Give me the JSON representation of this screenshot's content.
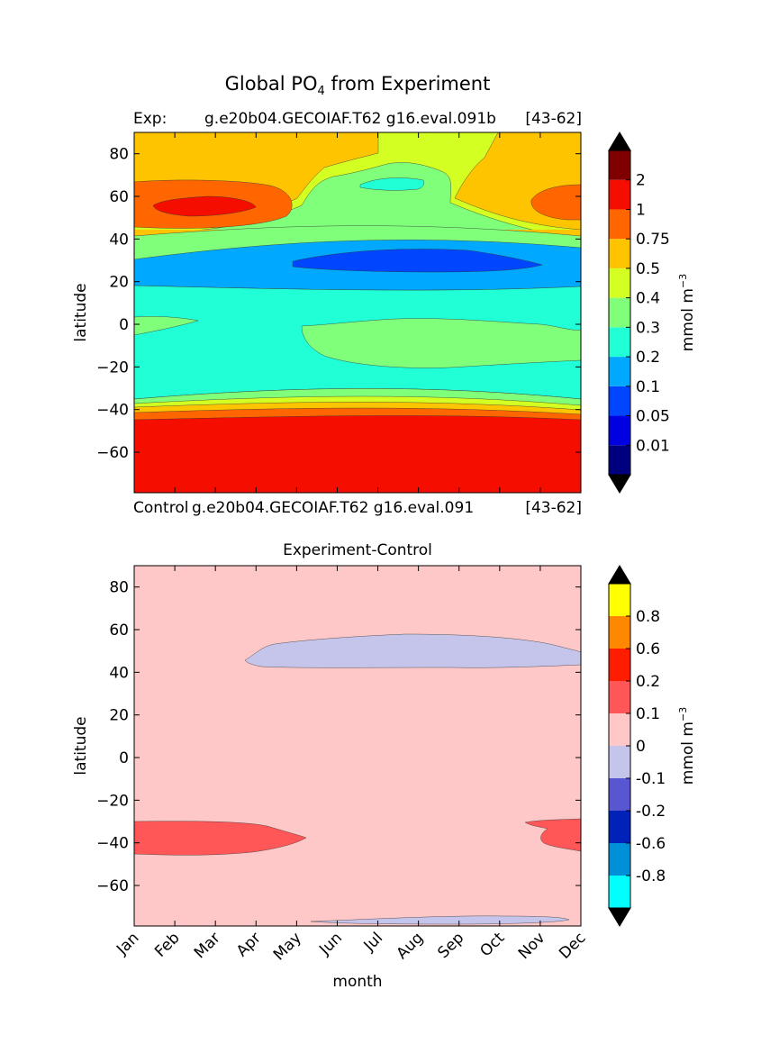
{
  "title": {
    "main": "Global PO",
    "sub": "4",
    "rest": " from Experiment"
  },
  "top_header": {
    "exp_label": "Exp:",
    "exp_name": "g.e20b04.GECOIAF.T62 g16.eval.091b",
    "range": "[43-62]"
  },
  "bottom_header": {
    "control_label": "Control",
    "control_name": "g.e20b04.GECOIAF.T62 g16.eval.091",
    "range": "[43-62]",
    "diff_title": "Experiment-Control"
  },
  "chart_data": [
    {
      "type": "heatmap",
      "title": "Global PO4 from Experiment",
      "xlabel": "",
      "ylabel": "latitude",
      "xlim": [
        0,
        11
      ],
      "ylim": [
        -79,
        90
      ],
      "yticks": [
        80,
        60,
        40,
        20,
        0,
        -20,
        -40,
        -60
      ],
      "colorbar": {
        "label": "mmol m",
        "label_sup": "−3",
        "levels": [
          "0.01",
          "0.05",
          "0.1",
          "0.2",
          "0.3",
          "0.4",
          "0.5",
          "0.75",
          "1",
          "2"
        ],
        "colors": [
          "#00007f",
          "#0000e0",
          "#0046ff",
          "#00a8ff",
          "#20ffd6",
          "#7fff7a",
          "#d4ff22",
          "#ffc400",
          "#ff6600",
          "#f50d00",
          "#7f0000"
        ],
        "extend": "both"
      },
      "regions": [
        {
          "x": [
            0,
            11
          ],
          "y": [
            -79,
            -45
          ],
          "value_range": "1-2"
        },
        {
          "x": [
            0,
            11
          ],
          "y": [
            -45,
            -40
          ],
          "value_range": "0.75-1"
        },
        {
          "x": [
            0,
            11
          ],
          "y": [
            -40,
            -34
          ],
          "value_range": "0.4-0.75"
        },
        {
          "x": [
            0,
            11
          ],
          "y": [
            -34,
            18
          ],
          "value_range": "0.2-0.3"
        },
        {
          "x": [
            4,
            11
          ],
          "y": [
            -22,
            -2
          ],
          "value_range": "0.3-0.4"
        },
        {
          "x": [
            0,
            11
          ],
          "y": [
            18,
            32
          ],
          "value_range": "0.1-0.2"
        },
        {
          "x": [
            4,
            9.8
          ],
          "y": [
            24,
            34
          ],
          "value_range": "0.05-0.1"
        },
        {
          "x": [
            0,
            11
          ],
          "y": [
            32,
            47
          ],
          "value_range": "0.3-0.4"
        },
        {
          "x": [
            0,
            11
          ],
          "y": [
            47,
            90
          ],
          "value_range": "0.5-0.75"
        },
        {
          "x": [
            0,
            3.8
          ],
          "y": [
            46,
            66
          ],
          "value_range": "0.75-1"
        },
        {
          "x": [
            0.4,
            2.8
          ],
          "y": [
            53,
            59
          ],
          "value_range": "1-2"
        },
        {
          "x": [
            9.8,
            11
          ],
          "y": [
            49,
            66
          ],
          "value_range": "0.75-1"
        }
      ]
    },
    {
      "type": "heatmap",
      "title": "Experiment-Control",
      "xlabel": "month",
      "ylabel": "latitude",
      "xlim": [
        0,
        11
      ],
      "ylim": [
        -79,
        90
      ],
      "categories": [
        "Jan",
        "Feb",
        "Mar",
        "Apr",
        "May",
        "Jun",
        "Jul",
        "Aug",
        "Sep",
        "Oct",
        "Nov",
        "Dec"
      ],
      "yticks": [
        80,
        60,
        40,
        20,
        0,
        -20,
        -40,
        -60
      ],
      "colorbar": {
        "label": "mmol m",
        "label_sup": "−3",
        "levels": [
          "-0.8",
          "-0.6",
          "-0.2",
          "-0.1",
          "0",
          "0.1",
          "0.2",
          "0.6",
          "0.8"
        ],
        "colors": [
          "#00ffff",
          "#0090d8",
          "#0022b8",
          "#5856d0",
          "#c5c5ec",
          "#ffc8c8",
          "#ff5757",
          "#ff1d00",
          "#ff8800",
          "#ffff00"
        ],
        "extend": "both"
      },
      "regions": [
        {
          "x": [
            0,
            11
          ],
          "y": [
            -79,
            90
          ],
          "value_range": "0-0.1"
        },
        {
          "x": [
            2.8,
            11
          ],
          "y": [
            43,
            57
          ],
          "value_range": "-0.1-0"
        },
        {
          "x": [
            0,
            4.2
          ],
          "y": [
            -46,
            -31
          ],
          "value_range": "0.1-0.2"
        },
        {
          "x": [
            9.8,
            11
          ],
          "y": [
            -44,
            -30
          ],
          "value_range": "0.1-0.2"
        },
        {
          "x": [
            4.3,
            10.4
          ],
          "y": [
            -79,
            -76
          ],
          "value_range": "-0.1-0"
        }
      ]
    }
  ]
}
